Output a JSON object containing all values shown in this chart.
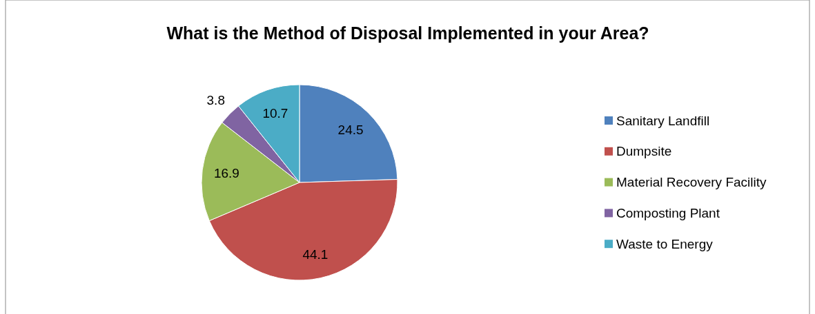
{
  "chart_data": {
    "type": "pie",
    "title": "What is the Method of Disposal Implemented in your Area?",
    "categories": [
      "Sanitary Landfill",
      "Dumpsite",
      "Material Recovery Facility",
      "Composting Plant",
      "Waste to Energy"
    ],
    "values": [
      24.5,
      44.1,
      16.9,
      3.8,
      10.7
    ],
    "colors": [
      "#4f81bd",
      "#c0504d",
      "#9bbb59",
      "#8064a2",
      "#4bacc6"
    ],
    "data_labels": true,
    "legend": "right"
  }
}
